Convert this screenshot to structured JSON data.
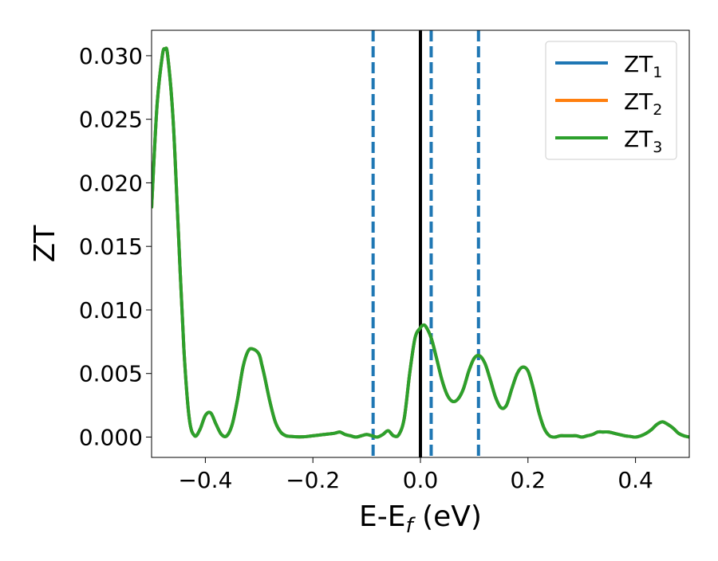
{
  "chart_data": {
    "type": "line",
    "xlabel_main": "E-E",
    "xlabel_sub": "f",
    "xlabel_tail": " (eV)",
    "ylabel": "ZT",
    "xlim": [
      -0.5,
      0.5
    ],
    "ylim": [
      -0.0016,
      0.032
    ],
    "x_ticks": [
      -0.4,
      -0.2,
      0.0,
      0.2,
      0.4
    ],
    "x_tick_labels": [
      "−0.4",
      "−0.2",
      "0.0",
      "0.2",
      "0.4"
    ],
    "y_ticks": [
      0.0,
      0.005,
      0.01,
      0.015,
      0.02,
      0.025,
      0.03
    ],
    "y_tick_labels": [
      "0.000",
      "0.005",
      "0.010",
      "0.015",
      "0.020",
      "0.025",
      "0.030"
    ],
    "grid": false,
    "legend_position": "top-right",
    "vertical_lines": [
      {
        "x": 0.0,
        "style": "solid",
        "color": "#000000"
      },
      {
        "x": -0.088,
        "style": "dashed",
        "color": "#1f77b4"
      },
      {
        "x": 0.02,
        "style": "dashed",
        "color": "#1f77b4"
      },
      {
        "x": 0.108,
        "style": "dashed",
        "color": "#1f77b4"
      }
    ],
    "series": [
      {
        "name_main": "ZT",
        "name_sub": "1",
        "color": "#1f77b4"
      },
      {
        "name_main": "ZT",
        "name_sub": "2",
        "color": "#ff7f0e"
      },
      {
        "name_main": "ZT",
        "name_sub": "3",
        "color": "#2ca02c"
      }
    ],
    "x": [
      -0.5,
      -0.49,
      -0.48,
      -0.475,
      -0.47,
      -0.46,
      -0.45,
      -0.44,
      -0.43,
      -0.42,
      -0.41,
      -0.4,
      -0.39,
      -0.38,
      -0.37,
      -0.36,
      -0.35,
      -0.34,
      -0.33,
      -0.32,
      -0.31,
      -0.3,
      -0.295,
      -0.29,
      -0.28,
      -0.27,
      -0.26,
      -0.25,
      -0.24,
      -0.23,
      -0.22,
      -0.21,
      -0.2,
      -0.18,
      -0.16,
      -0.15,
      -0.14,
      -0.13,
      -0.12,
      -0.11,
      -0.1,
      -0.09,
      -0.08,
      -0.07,
      -0.06,
      -0.05,
      -0.04,
      -0.03,
      -0.02,
      -0.01,
      0.0,
      0.005,
      0.01,
      0.02,
      0.03,
      0.04,
      0.05,
      0.06,
      0.07,
      0.08,
      0.09,
      0.1,
      0.11,
      0.12,
      0.13,
      0.14,
      0.15,
      0.16,
      0.17,
      0.18,
      0.19,
      0.2,
      0.21,
      0.22,
      0.23,
      0.24,
      0.25,
      0.26,
      0.27,
      0.28,
      0.29,
      0.3,
      0.31,
      0.32,
      0.33,
      0.34,
      0.35,
      0.36,
      0.37,
      0.38,
      0.39,
      0.4,
      0.41,
      0.42,
      0.43,
      0.44,
      0.45,
      0.46,
      0.47,
      0.48,
      0.49,
      0.5
    ],
    "values": [
      0.018,
      0.026,
      0.03,
      0.0305,
      0.03,
      0.025,
      0.016,
      0.007,
      0.0015,
      0.0001,
      0.0006,
      0.0017,
      0.0019,
      0.001,
      0.0002,
      0.0001,
      0.001,
      0.003,
      0.0055,
      0.0068,
      0.0069,
      0.0065,
      0.0057,
      0.0048,
      0.0028,
      0.0012,
      0.0004,
      0.0001,
      5e-05,
      2e-05,
      2e-05,
      5e-05,
      0.0001,
      0.0002,
      0.0003,
      0.0004,
      0.0002,
      0.0001,
      0.0,
      0.0001,
      0.0002,
      0.0001,
      0.0,
      0.0002,
      0.0005,
      0.0001,
      0.0002,
      0.0015,
      0.005,
      0.0078,
      0.0086,
      0.0088,
      0.0087,
      0.0078,
      0.0062,
      0.0045,
      0.0033,
      0.0028,
      0.003,
      0.0038,
      0.0052,
      0.0062,
      0.0064,
      0.0058,
      0.0045,
      0.0031,
      0.0023,
      0.0025,
      0.0038,
      0.005,
      0.0055,
      0.0052,
      0.0038,
      0.002,
      0.0007,
      0.0001,
      0.0,
      0.0001,
      0.0001,
      0.0001,
      0.0001,
      0.0,
      0.0001,
      0.0002,
      0.0004,
      0.0004,
      0.0004,
      0.0003,
      0.0002,
      0.0001,
      5e-05,
      0.0,
      0.0001,
      0.0003,
      0.0006,
      0.001,
      0.0012,
      0.001,
      0.0007,
      0.0003,
      0.0001,
      0.0
    ]
  }
}
